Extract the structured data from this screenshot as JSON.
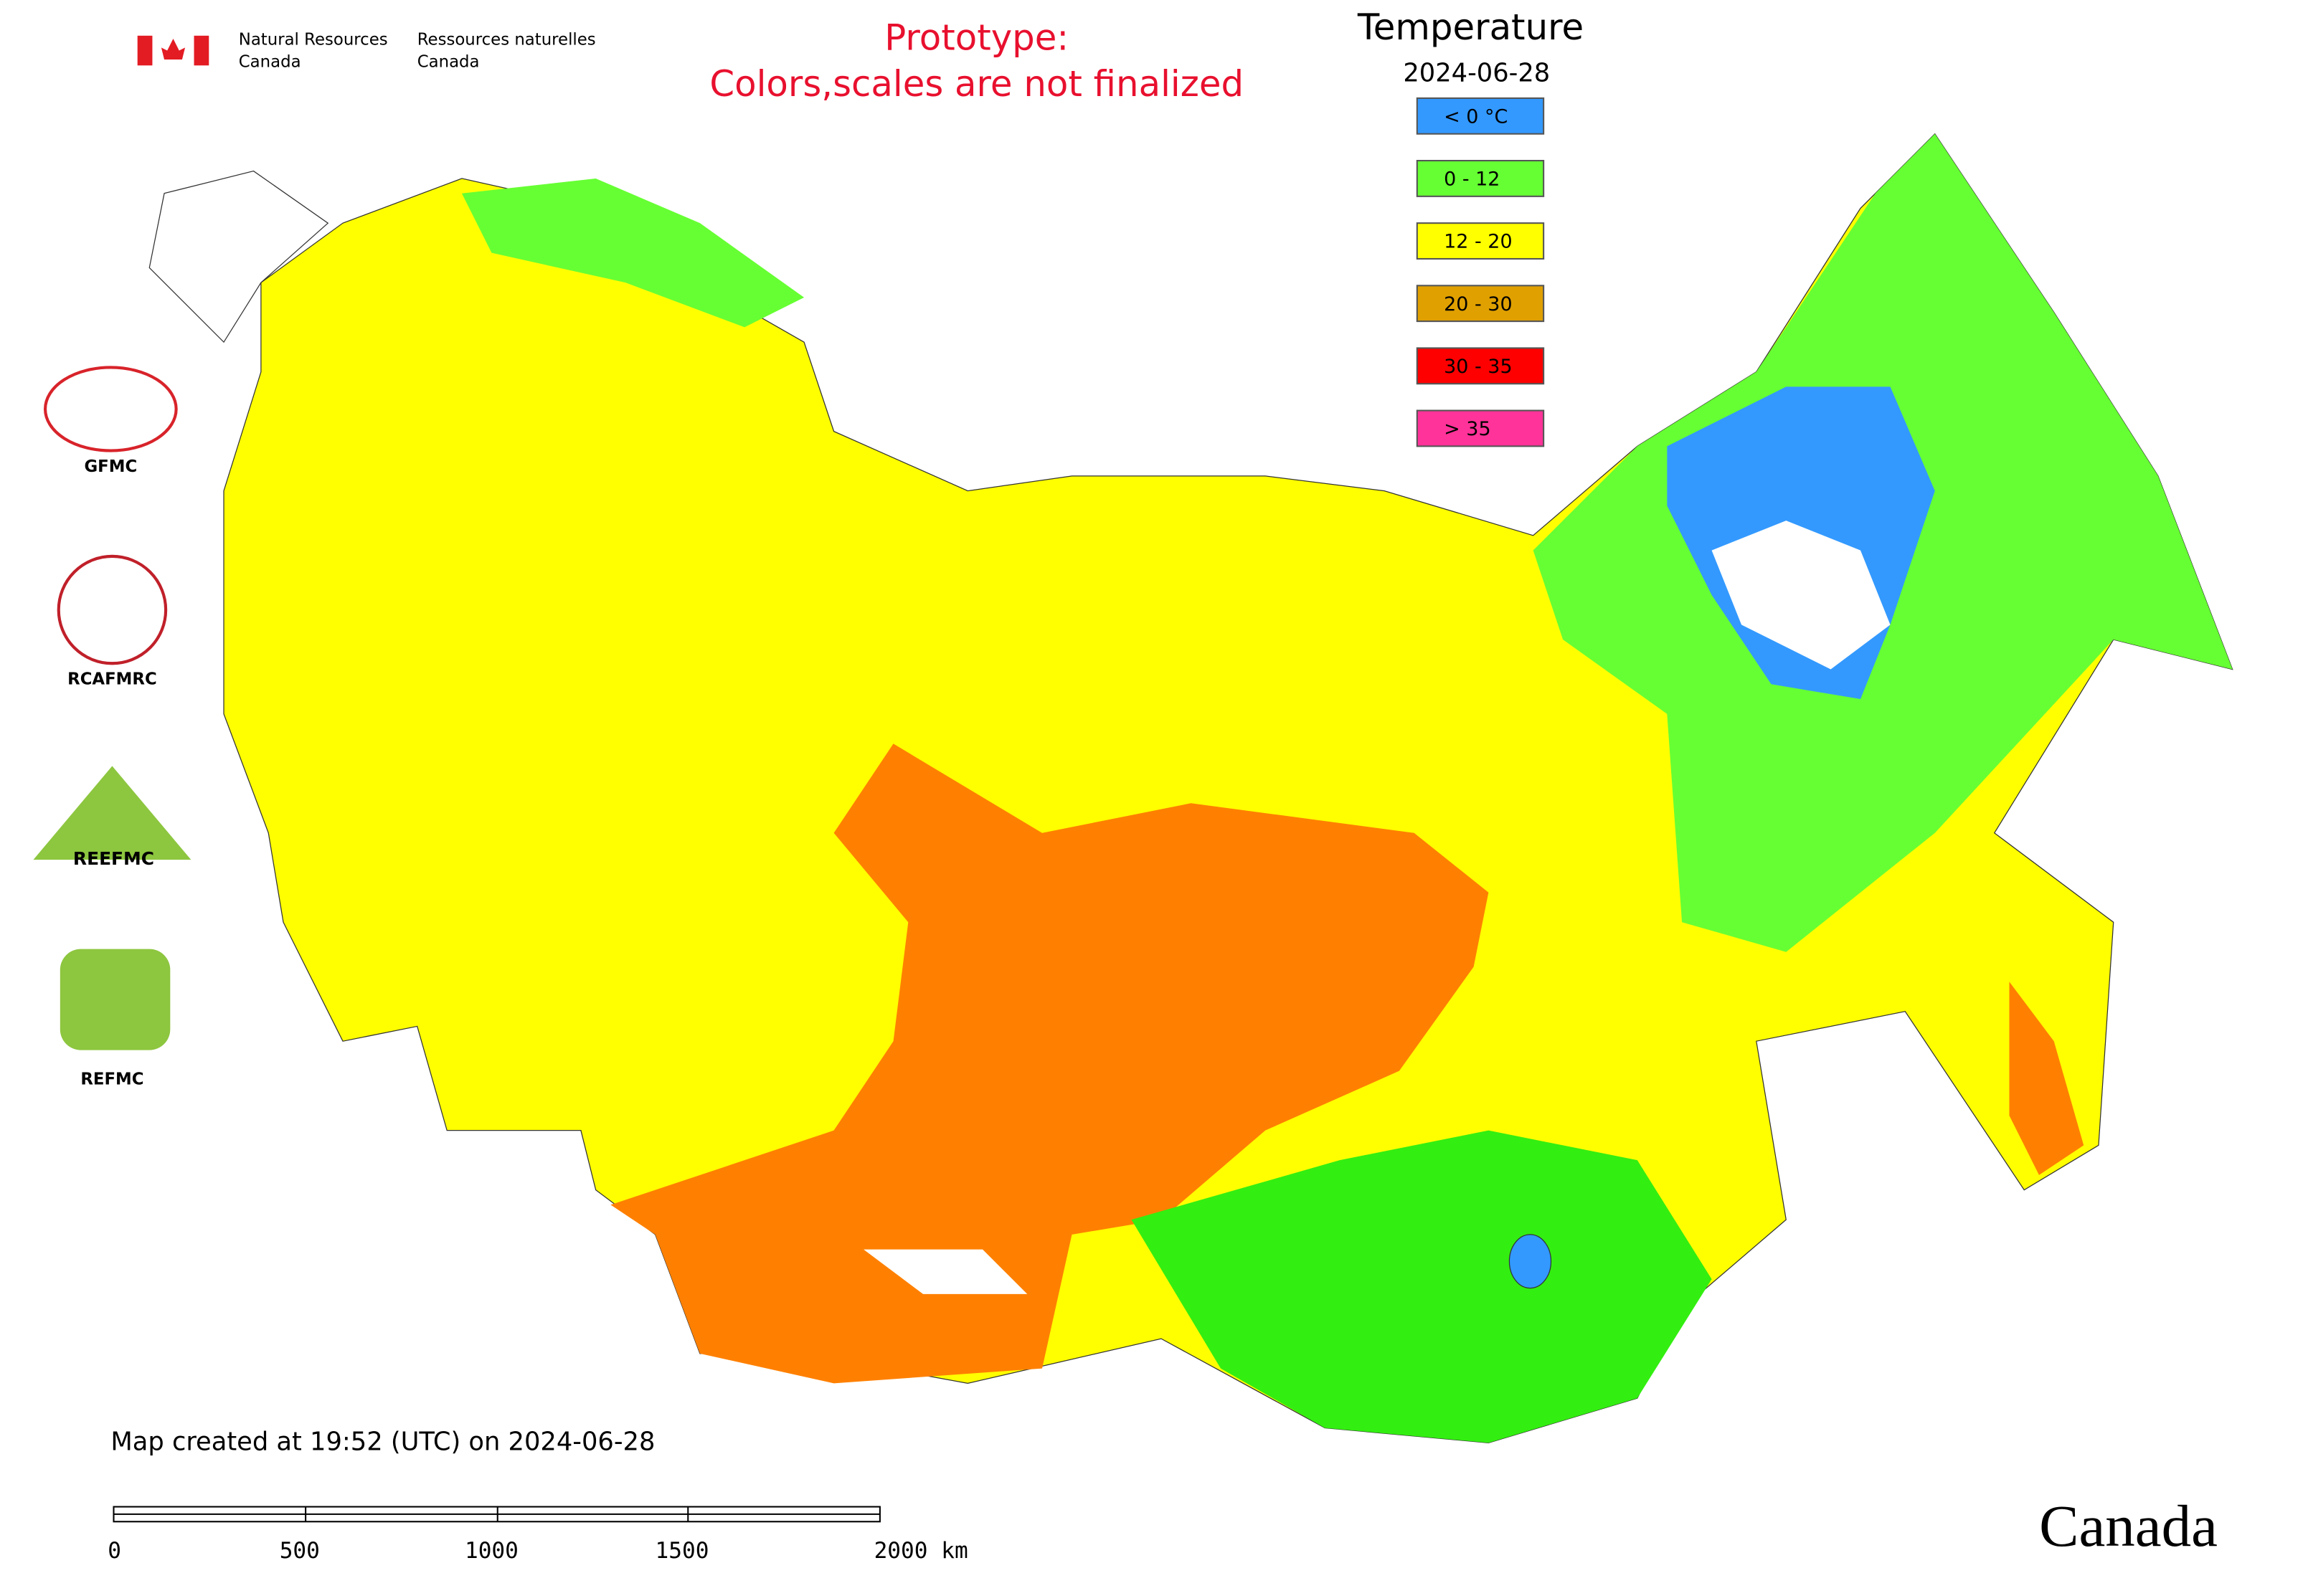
{
  "header": {
    "gov_en": [
      "Natural Resources",
      "Canada"
    ],
    "gov_fr": [
      "Ressources naturelles",
      "Canada"
    ],
    "notice": [
      "Prototype:",
      "Colors,scales are not finalized"
    ]
  },
  "legend": {
    "title": "Temperature",
    "date": "2024-06-28",
    "items": [
      {
        "label": "< 0 °C",
        "color": "#3399ff"
      },
      {
        "label": "0 - 12",
        "color": "#66ff33"
      },
      {
        "label": "12 - 20",
        "color": "#ffff00"
      },
      {
        "label": "20 - 30",
        "color": "#e0a000"
      },
      {
        "label": "30 - 35",
        "color": "#ff0000"
      },
      {
        "label": "> 35",
        "color": "#ff3399"
      }
    ]
  },
  "logos": [
    "GFMC",
    "RCAFMRC",
    "REEFMC",
    "REFMC"
  ],
  "footer": {
    "created": "Map created at 19:52 (UTC) on 2024-06-28",
    "wordmark": "Canada"
  },
  "scale_bar": [
    "0",
    "500",
    "1000",
    "1500",
    "2000 km"
  ]
}
